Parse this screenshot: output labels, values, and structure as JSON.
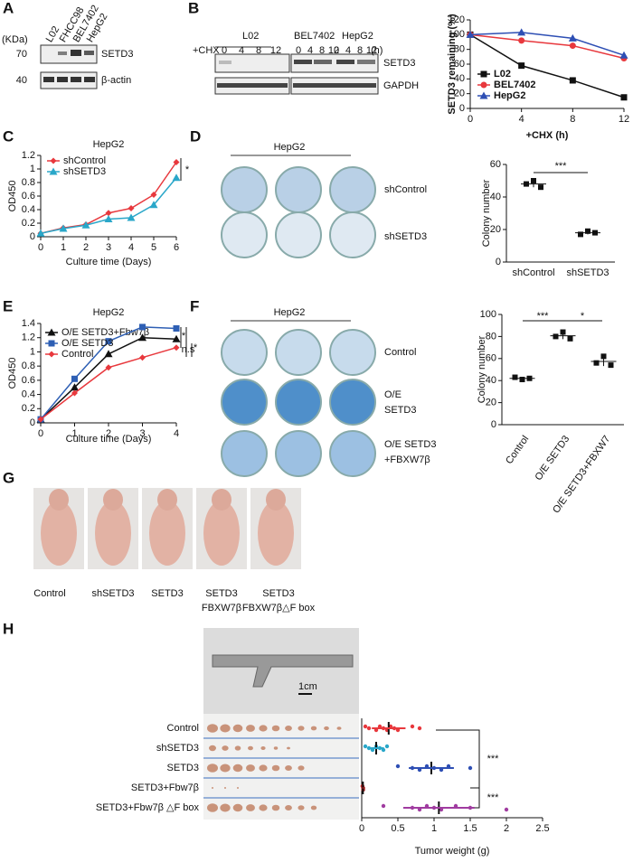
{
  "panels": {
    "A": {
      "letter": "A",
      "units": "(KDa)",
      "lanes": [
        "L02",
        "FHCC98",
        "BEL7402",
        "HepG2"
      ],
      "markers": [
        70,
        40
      ],
      "bands": [
        "SETD3",
        "β-actin"
      ]
    },
    "B": {
      "letter": "B",
      "treatment": "+CHX",
      "groups": [
        "L02",
        "BEL7402",
        "HepG2"
      ],
      "times": [
        0,
        4,
        8,
        12
      ],
      "unit": "(h)",
      "bands": [
        "SETD3",
        "GAPDH"
      ]
    },
    "C": {
      "letter": "C"
    },
    "D": {
      "letter": "D",
      "cell_line": "HepG2",
      "rows": [
        [
          "shControl"
        ],
        [
          "shSETD3"
        ]
      ]
    },
    "E": {
      "letter": "E"
    },
    "F": {
      "letter": "F",
      "cell_line": "HepG2",
      "rows": [
        [
          "Control"
        ],
        [
          "O/E",
          "SETD3"
        ],
        [
          "O/E SETD3",
          "+FBXW7β"
        ]
      ]
    },
    "G": {
      "letter": "G",
      "labels": [
        [
          "Control"
        ],
        [
          "shSETD3"
        ],
        [
          "SETD3"
        ],
        [
          "SETD3",
          "FBXW7β"
        ],
        [
          "SETD3",
          "FBXW7β△F box"
        ]
      ]
    },
    "H": {
      "letter": "H",
      "scale": "1cm"
    }
  },
  "chart_data": [
    {
      "type": "line",
      "y_label": "SETD3 remaining (%)",
      "x_label": "+CHX (h)",
      "x": [
        0,
        4,
        8,
        12
      ],
      "xlim": [
        0,
        12
      ],
      "xticks": [
        0,
        4,
        8,
        12
      ],
      "ylim": [
        0,
        120
      ],
      "yticks": [
        0,
        20,
        40,
        60,
        80,
        100,
        120
      ],
      "legend": "lower left",
      "series": [
        {
          "name": "L02",
          "color": "#111111",
          "marker": "square",
          "values": [
            100,
            58,
            38,
            15
          ]
        },
        {
          "name": "BEL7402",
          "color": "#e8383d",
          "marker": "circle",
          "values": [
            100,
            92,
            85,
            68
          ]
        },
        {
          "name": "HepG2",
          "color": "#2e4fb4",
          "marker": "triangle",
          "values": [
            100,
            103,
            95,
            72
          ]
        }
      ]
    },
    {
      "type": "line",
      "title": "HepG2",
      "y_label": "OD450",
      "x_label": "Culture time (Days)",
      "x": [
        0,
        1,
        2,
        3,
        4,
        5,
        6
      ],
      "xlim": [
        0,
        6
      ],
      "xticks": [
        0,
        1,
        2,
        3,
        4,
        5,
        6
      ],
      "ylim": [
        0,
        1.2
      ],
      "yticks": [
        0,
        0.2,
        0.4,
        0.6,
        0.8,
        1,
        1.2
      ],
      "legend": "upper left",
      "annotations": [
        "*"
      ],
      "series": [
        {
          "name": "shControl",
          "color": "#e8383d",
          "marker": "diamond",
          "values": [
            0.05,
            0.13,
            0.18,
            0.35,
            0.42,
            0.62,
            1.1
          ]
        },
        {
          "name": "shSETD3",
          "color": "#2aa7c9",
          "marker": "triangle",
          "values": [
            0.05,
            0.12,
            0.17,
            0.26,
            0.28,
            0.47,
            0.87
          ]
        }
      ]
    },
    {
      "type": "dot",
      "y_label": "Colony number",
      "categories": [
        "shControl",
        "shSETD3"
      ],
      "values": [
        [
          48,
          50,
          46
        ],
        [
          17,
          19,
          18
        ]
      ],
      "ylim": [
        0,
        60
      ],
      "yticks": [
        0,
        20,
        40,
        60
      ],
      "color": "#111111",
      "annotations": [
        "***"
      ]
    },
    {
      "type": "line",
      "title": "HepG2",
      "y_label": "OD450",
      "x_label": "Culture time (Days)",
      "x": [
        0,
        1,
        2,
        3,
        4
      ],
      "xlim": [
        0,
        4
      ],
      "xticks": [
        0,
        1,
        2,
        3,
        4
      ],
      "ylim": [
        0,
        1.4
      ],
      "yticks": [
        0,
        0.2,
        0.4,
        0.6,
        0.8,
        1,
        1.2,
        1.4
      ],
      "legend": "upper left",
      "annotations": [
        "*",
        "n.s",
        "*"
      ],
      "series": [
        {
          "name": "O/E SETD3+Fbw7β",
          "color": "#111111",
          "marker": "triangle",
          "values": [
            0.05,
            0.5,
            0.97,
            1.2,
            1.18
          ]
        },
        {
          "name": "O/E SETD3",
          "color": "#2e5fb4",
          "marker": "square",
          "values": [
            0.05,
            0.62,
            1.15,
            1.35,
            1.33
          ]
        },
        {
          "name": "Control",
          "color": "#e8383d",
          "marker": "diamond",
          "values": [
            0.05,
            0.42,
            0.78,
            0.92,
            1.06
          ]
        }
      ]
    },
    {
      "type": "dot",
      "y_label": "Colony number",
      "categories": [
        "Control",
        "O/E SETD3",
        "O/E SETD3+FBXW7"
      ],
      "values": [
        [
          43,
          41,
          42
        ],
        [
          80,
          84,
          78
        ],
        [
          56,
          62,
          54
        ]
      ],
      "ylim": [
        0,
        100
      ],
      "yticks": [
        0,
        20,
        40,
        60,
        80,
        100
      ],
      "color": "#111111",
      "annotations": [
        "***",
        "*"
      ]
    },
    {
      "type": "dot",
      "orientation": "horizontal",
      "x_label": "Tumor weight (g)",
      "categories": [
        "Control",
        "shSETD3",
        "SETD3",
        "SETD3+Fbw7β",
        "SETD3+Fbw7β △F box"
      ],
      "values": [
        [
          0.05,
          0.1,
          0.2,
          0.25,
          0.3,
          0.35,
          0.4,
          0.45,
          0.5,
          0.7,
          0.8
        ],
        [
          0.05,
          0.1,
          0.15,
          0.2,
          0.25,
          0.3,
          0.35
        ],
        [
          0.5,
          0.7,
          0.8,
          0.9,
          1.0,
          1.1,
          1.2,
          1.5
        ],
        [
          0.01,
          0.02,
          0.02
        ],
        [
          0.3,
          0.7,
          0.8,
          0.9,
          1.0,
          1.1,
          1.3,
          1.5,
          2.0
        ]
      ],
      "colors": [
        "#e8383d",
        "#2aa7c9",
        "#2e4fb4",
        "#b22222",
        "#a03ca0"
      ],
      "xlim": [
        0,
        2.5
      ],
      "xticks": [
        0,
        0.5,
        1,
        1.5,
        2,
        2.5
      ],
      "annotations": [
        "***",
        "***"
      ]
    }
  ]
}
